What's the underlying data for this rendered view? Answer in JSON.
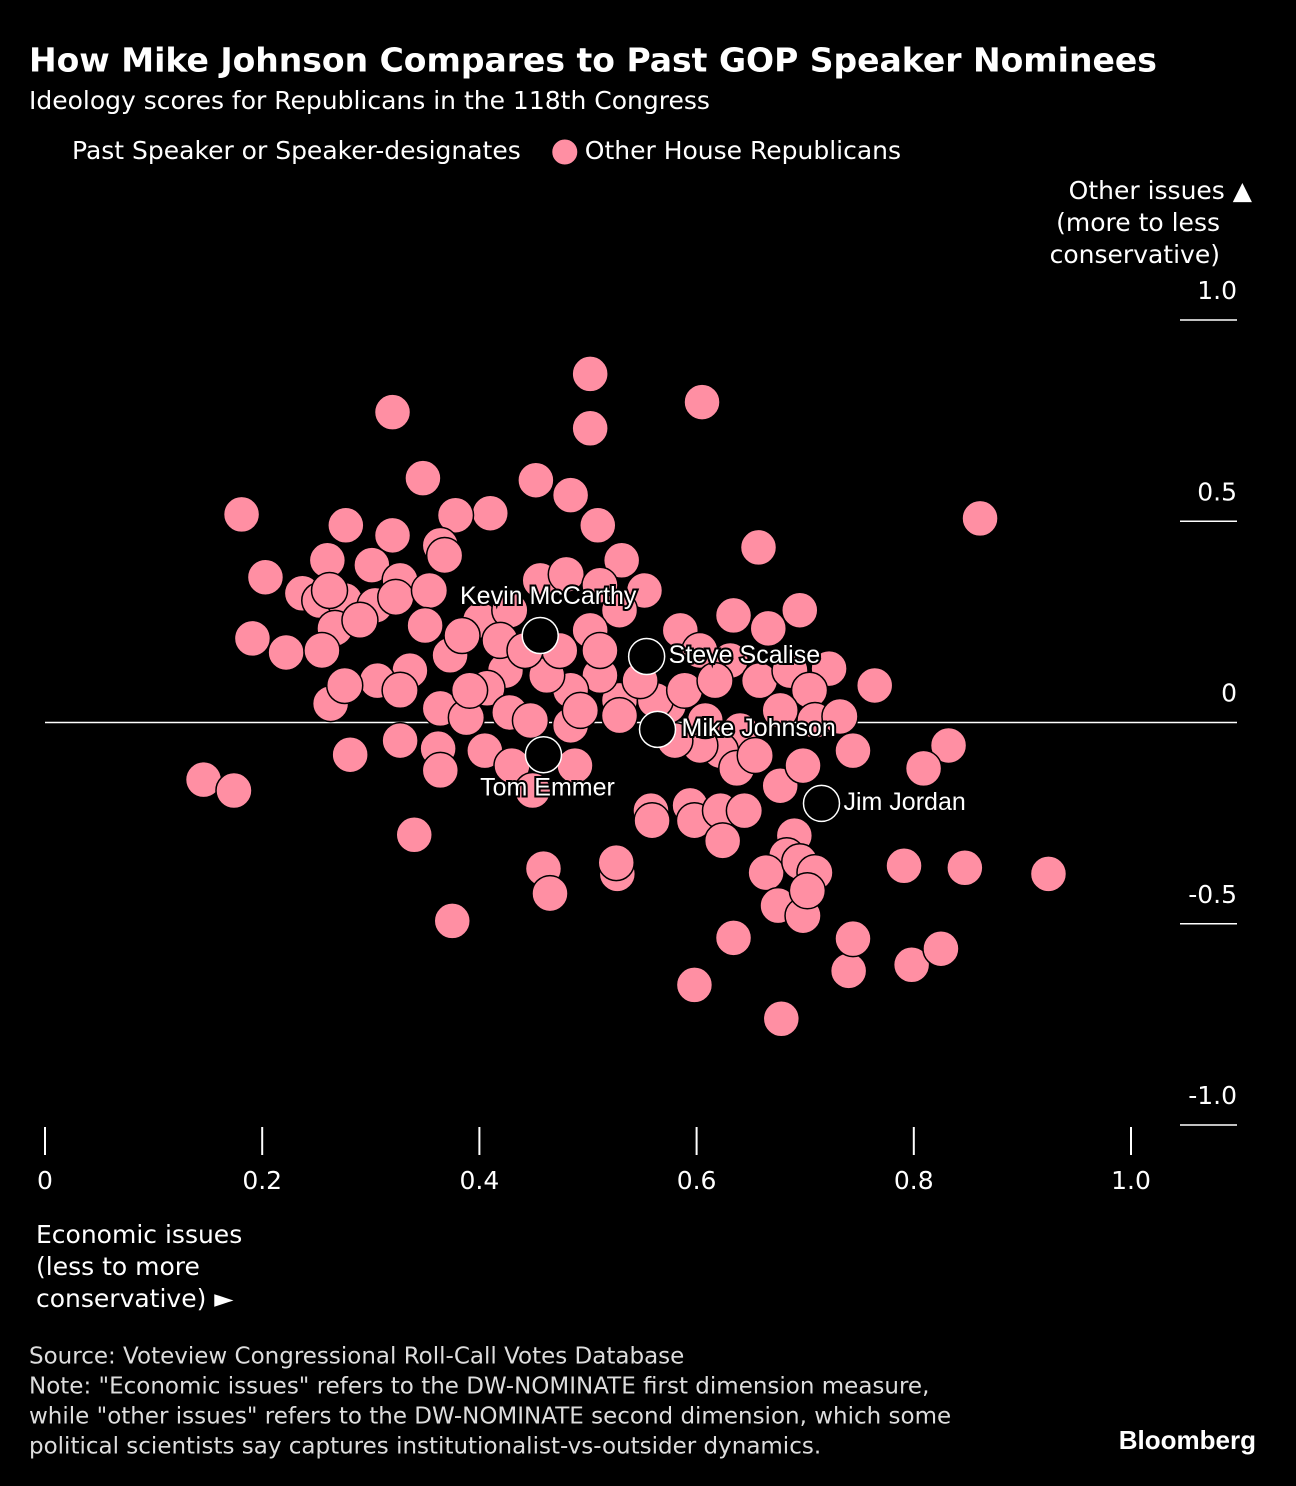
{
  "chart_data": {
    "type": "scatter",
    "title": "How Mike Johnson Compares to Past GOP Speaker Nominees",
    "subtitle": "Ideology scores for Republicans in the 118th Congress",
    "ylabel": [
      "Other issues ▲",
      "(more to less",
      "conservative)"
    ],
    "xlabel": [
      "Economic issues",
      "(less to more",
      "conservative) ►"
    ],
    "xlim": [
      0,
      1.1
    ],
    "ylim": [
      -1.0,
      1.0
    ],
    "xticks": [
      0,
      0.2,
      0.4,
      0.6,
      0.8,
      {
        "value": 1,
        "label": "1.0"
      }
    ],
    "yticks": [
      {
        "value": 1,
        "label": "1.0"
      },
      0.5,
      0,
      -0.5,
      {
        "value": -1,
        "label": "-1.0"
      }
    ],
    "zero_line": true,
    "series": [
      {
        "name": "Other House Republicans",
        "color": "#ff8fa3",
        "x": [
          0.502,
          0.32,
          0.605,
          0.502,
          0.348,
          0.452,
          0.484,
          0.181,
          0.277,
          0.861,
          0.41,
          0.509,
          0.657,
          0.203,
          0.237,
          0.191,
          0.222,
          0.263,
          0.281,
          0.146,
          0.174,
          0.34,
          0.375,
          0.459,
          0.465,
          0.527,
          0.598,
          0.634,
          0.678,
          0.74,
          0.744,
          0.798,
          0.825,
          0.791,
          0.847,
          0.924,
          0.832,
          0.809,
          0.764,
          0.744,
          0.695,
          0.634,
          0.666,
          0.722,
          0.531,
          0.378,
          0.32,
          0.364,
          0.26,
          0.301,
          0.327,
          0.368,
          0.253,
          0.276,
          0.304,
          0.323,
          0.354,
          0.35,
          0.267,
          0.255,
          0.29,
          0.401,
          0.428,
          0.456,
          0.48,
          0.511,
          0.552,
          0.529,
          0.502,
          0.585,
          0.603,
          0.631,
          0.658,
          0.686,
          0.704,
          0.677,
          0.709,
          0.732,
          0.64,
          0.622,
          0.637,
          0.603,
          0.677,
          0.698,
          0.58,
          0.574,
          0.529,
          0.511,
          0.484,
          0.462,
          0.424,
          0.407,
          0.373,
          0.336,
          0.306,
          0.276,
          0.327,
          0.364,
          0.388,
          0.428,
          0.447,
          0.484,
          0.529,
          0.327,
          0.362,
          0.364,
          0.405,
          0.43,
          0.449,
          0.488,
          0.558,
          0.559,
          0.594,
          0.598,
          0.622,
          0.644,
          0.624,
          0.69,
          0.683,
          0.664,
          0.695,
          0.709,
          0.675,
          0.698,
          0.702,
          0.526,
          0.562,
          0.589,
          0.617,
          0.548,
          0.474,
          0.419,
          0.511,
          0.442,
          0.391,
          0.493,
          0.262,
          0.384,
          0.608,
          0.654
        ],
        "values": [
          0.866,
          0.771,
          0.796,
          0.731,
          0.607,
          0.602,
          0.565,
          0.517,
          0.49,
          0.507,
          0.52,
          0.49,
          0.435,
          0.361,
          0.321,
          0.209,
          0.174,
          0.047,
          -0.08,
          -0.142,
          -0.169,
          -0.279,
          -0.493,
          -0.363,
          -0.425,
          -0.376,
          -0.652,
          -0.535,
          -0.736,
          -0.617,
          -0.537,
          -0.602,
          -0.562,
          -0.356,
          -0.361,
          -0.376,
          -0.057,
          -0.114,
          0.092,
          -0.07,
          0.279,
          0.266,
          0.234,
          0.134,
          0.403,
          0.515,
          0.465,
          0.44,
          0.403,
          0.391,
          0.353,
          0.415,
          0.303,
          0.303,
          0.291,
          0.311,
          0.328,
          0.241,
          0.234,
          0.179,
          0.254,
          0.254,
          0.279,
          0.353,
          0.368,
          0.341,
          0.328,
          0.279,
          0.229,
          0.229,
          0.179,
          0.154,
          0.104,
          0.129,
          0.08,
          0.03,
          0.005,
          0.015,
          -0.02,
          -0.07,
          -0.114,
          -0.057,
          -0.157,
          -0.107,
          -0.045,
          0.042,
          0.055,
          0.117,
          0.08,
          0.117,
          0.129,
          0.085,
          0.167,
          0.129,
          0.104,
          0.092,
          0.08,
          0.035,
          0.012,
          0.025,
          0.005,
          -0.007,
          0.017,
          -0.045,
          -0.065,
          -0.119,
          -0.07,
          -0.107,
          -0.169,
          -0.107,
          -0.219,
          -0.244,
          -0.206,
          -0.244,
          -0.219,
          -0.219,
          -0.294,
          -0.281,
          -0.331,
          -0.373,
          -0.346,
          -0.373,
          -0.455,
          -0.48,
          -0.418,
          -0.348,
          0.055,
          0.08,
          0.104,
          0.104,
          0.179,
          0.204,
          0.179,
          0.179,
          0.08,
          0.03,
          0.328,
          0.216,
          0.005,
          -0.082
        ]
      },
      {
        "name": "Past Speaker or Speaker-designates",
        "color": "#000000",
        "labels": [
          "Kevin McCarthy",
          "Steve Scalise",
          "Mike Johnson",
          "Tom Emmer",
          "Jim Jordan"
        ],
        "x": [
          0.456,
          0.554,
          0.564,
          0.459,
          0.715
        ],
        "values": [
          0.216,
          0.164,
          -0.017,
          -0.08,
          -0.201
        ]
      }
    ],
    "legend_order": [
      1,
      0
    ],
    "source": "Source: Voteview Congressional Roll-Call Votes Database",
    "note": [
      "Note: \"Economic issues\" refers to the DW-NOMINATE first dimension measure,",
      "while \"other issues\" refers to the DW-NOMINATE second dimension, which some",
      "political scientists say captures institutionalist-vs-outsider dynamics."
    ],
    "brand": "Bloomberg"
  }
}
